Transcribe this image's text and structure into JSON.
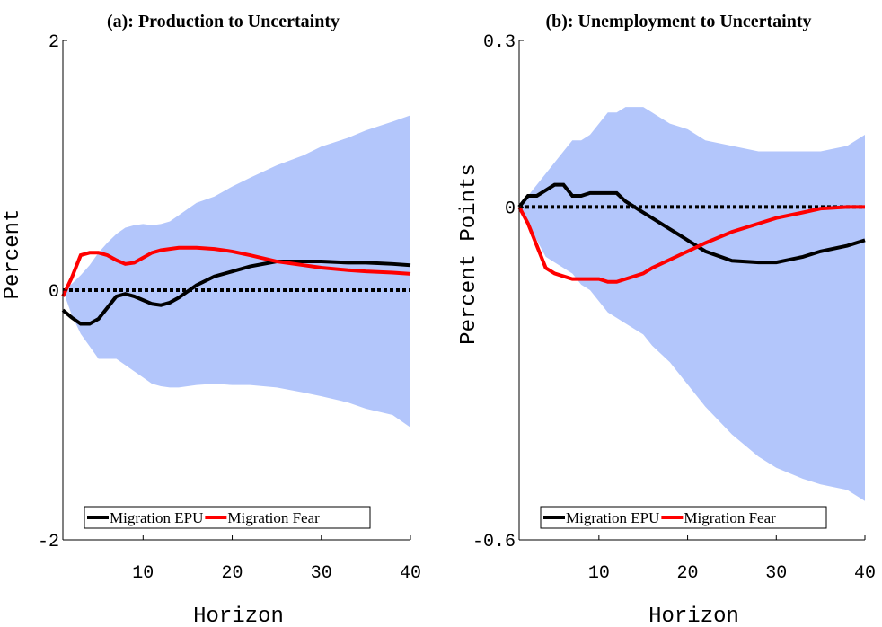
{
  "chart_data": [
    {
      "type": "line",
      "title": "(a): Production to Uncertainty",
      "xlabel": "Horizon",
      "ylabel": "Percent",
      "x": [
        1,
        2,
        3,
        4,
        5,
        6,
        7,
        8,
        9,
        10,
        11,
        12,
        13,
        14,
        15,
        16,
        18,
        20,
        22,
        25,
        28,
        30,
        33,
        35,
        38,
        40
      ],
      "series": [
        {
          "name": "Migration EPU",
          "color": "#000000",
          "values": [
            -0.16,
            -0.22,
            -0.27,
            -0.27,
            -0.23,
            -0.14,
            -0.05,
            -0.03,
            -0.05,
            -0.08,
            -0.11,
            -0.12,
            -0.1,
            -0.06,
            -0.01,
            0.04,
            0.11,
            0.15,
            0.19,
            0.23,
            0.23,
            0.23,
            0.22,
            0.22,
            0.21,
            0.2
          ]
        },
        {
          "name": "Migration Fear",
          "color": "#ff0000",
          "values": [
            -0.05,
            0.1,
            0.28,
            0.3,
            0.3,
            0.28,
            0.24,
            0.21,
            0.22,
            0.26,
            0.3,
            0.32,
            0.33,
            0.34,
            0.34,
            0.34,
            0.33,
            0.31,
            0.28,
            0.23,
            0.2,
            0.18,
            0.16,
            0.15,
            0.14,
            0.13
          ]
        }
      ],
      "band": {
        "color": "#b3c6fb",
        "upper": [
          0,
          0.05,
          0.12,
          0.2,
          0.3,
          0.38,
          0.45,
          0.5,
          0.52,
          0.53,
          0.52,
          0.53,
          0.55,
          0.6,
          0.65,
          0.7,
          0.75,
          0.83,
          0.9,
          1.0,
          1.08,
          1.15,
          1.22,
          1.28,
          1.35,
          1.4
        ],
        "lower": [
          0,
          -0.2,
          -0.35,
          -0.45,
          -0.55,
          -0.55,
          -0.55,
          -0.6,
          -0.65,
          -0.7,
          -0.75,
          -0.77,
          -0.78,
          -0.78,
          -0.77,
          -0.76,
          -0.75,
          -0.76,
          -0.76,
          -0.78,
          -0.82,
          -0.85,
          -0.9,
          -0.95,
          -1.0,
          -1.1
        ]
      },
      "reference_line": 0,
      "xlim": [
        1,
        40
      ],
      "xticks": [
        10,
        20,
        30,
        40
      ],
      "ylim": [
        -2,
        2
      ],
      "yticks": [
        -2,
        0,
        2
      ],
      "legend": "lower center"
    },
    {
      "type": "line",
      "title": "(b): Unemployment to Uncertainty",
      "xlabel": "Horizon",
      "ylabel": "Percent Points",
      "x": [
        1,
        2,
        3,
        4,
        5,
        6,
        7,
        8,
        9,
        10,
        11,
        12,
        13,
        14,
        15,
        16,
        18,
        20,
        22,
        25,
        28,
        30,
        33,
        35,
        38,
        40
      ],
      "series": [
        {
          "name": "Migration EPU",
          "color": "#000000",
          "values": [
            0,
            0.02,
            0.02,
            0.03,
            0.04,
            0.04,
            0.02,
            0.02,
            0.025,
            0.025,
            0.025,
            0.025,
            0.01,
            0,
            -0.01,
            -0.02,
            -0.04,
            -0.06,
            -0.08,
            -0.097,
            -0.1,
            -0.1,
            -0.09,
            -0.08,
            -0.07,
            -0.06
          ]
        },
        {
          "name": "Migration Fear",
          "color": "#ff0000",
          "values": [
            0,
            -0.03,
            -0.07,
            -0.11,
            -0.12,
            -0.125,
            -0.13,
            -0.13,
            -0.13,
            -0.13,
            -0.135,
            -0.135,
            -0.13,
            -0.125,
            -0.12,
            -0.11,
            -0.095,
            -0.08,
            -0.065,
            -0.045,
            -0.03,
            -0.02,
            -0.01,
            -0.003,
            0,
            0
          ]
        }
      ],
      "band": {
        "color": "#b3c6fb",
        "upper": [
          0,
          0.02,
          0.04,
          0.06,
          0.08,
          0.1,
          0.12,
          0.12,
          0.13,
          0.15,
          0.17,
          0.17,
          0.18,
          0.18,
          0.18,
          0.17,
          0.15,
          0.14,
          0.12,
          0.11,
          0.1,
          0.1,
          0.1,
          0.1,
          0.11,
          0.13
        ],
        "lower": [
          0,
          -0.03,
          -0.06,
          -0.09,
          -0.1,
          -0.11,
          -0.12,
          -0.14,
          -0.15,
          -0.17,
          -0.19,
          -0.2,
          -0.21,
          -0.22,
          -0.23,
          -0.25,
          -0.28,
          -0.32,
          -0.36,
          -0.41,
          -0.45,
          -0.47,
          -0.49,
          -0.5,
          -0.51,
          -0.53
        ]
      },
      "reference_line": 0,
      "xlim": [
        1,
        40
      ],
      "xticks": [
        10,
        20,
        30,
        40
      ],
      "ylim": [
        -0.6,
        0.3
      ],
      "yticks": [
        -0.6,
        0,
        0.3
      ],
      "legend": "lower center"
    }
  ]
}
